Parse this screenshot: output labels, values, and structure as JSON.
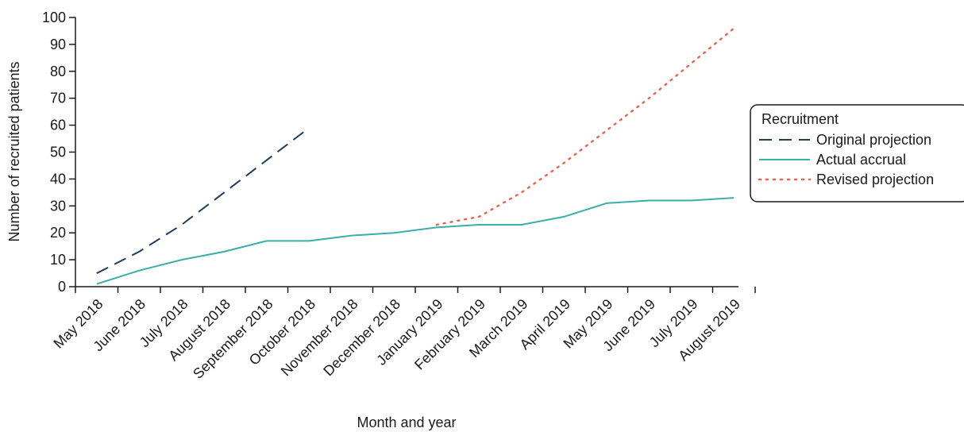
{
  "chart_data": {
    "type": "line",
    "title": "",
    "xlabel": "Month and year",
    "ylabel": "Number of recruited patients",
    "ylim": [
      0,
      100
    ],
    "yticks": [
      0,
      10,
      20,
      30,
      40,
      50,
      60,
      70,
      80,
      90,
      100
    ],
    "grid": false,
    "categories": [
      "May 2018",
      "June 2018",
      "July 2018",
      "August 2018",
      "September 2018",
      "October 2018",
      "November 2018",
      "December 2018",
      "January 2019",
      "February 2019",
      "March 2019",
      "April 2019",
      "May 2019",
      "June 2019",
      "July 2019",
      "August 2019"
    ],
    "legend": {
      "title": "Recruitment",
      "placement": "right"
    },
    "series": [
      {
        "name": "Original projection",
        "style": "dashed",
        "color": "#1f3b5e",
        "values": [
          5,
          13,
          23,
          35,
          47,
          59,
          null,
          null,
          null,
          null,
          null,
          null,
          null,
          null,
          null,
          null
        ]
      },
      {
        "name": "Actual accrual",
        "style": "solid",
        "color": "#3aaea8",
        "values": [
          1,
          6,
          10,
          13,
          17,
          17,
          19,
          20,
          22,
          23,
          23,
          26,
          31,
          32,
          32,
          33
        ]
      },
      {
        "name": "Revised projection",
        "style": "dotted",
        "color": "#e8604c",
        "values": [
          null,
          null,
          null,
          null,
          null,
          null,
          null,
          null,
          23,
          26,
          35,
          46,
          58,
          70,
          83,
          96
        ]
      }
    ]
  }
}
